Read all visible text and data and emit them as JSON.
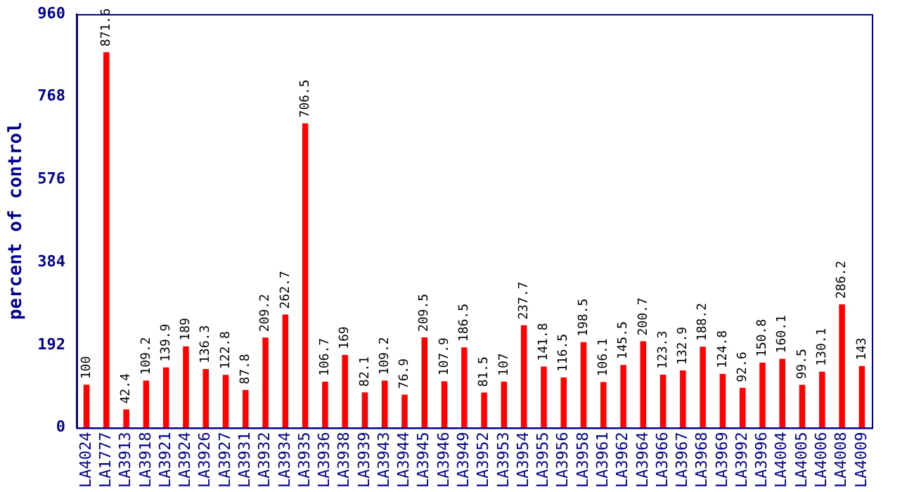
{
  "chart_data": {
    "type": "bar",
    "ylabel": "percent of control",
    "categories": [
      "LA4024",
      "LA1777",
      "LA3913",
      "LA3918",
      "LA3921",
      "LA3924",
      "LA3926",
      "LA3927",
      "LA3931",
      "LA3932",
      "LA3934",
      "LA3935",
      "LA3936",
      "LA3938",
      "LA3939",
      "LA3943",
      "LA3944",
      "LA3945",
      "LA3946",
      "LA3949",
      "LA3952",
      "LA3953",
      "LA3954",
      "LA3955",
      "LA3956",
      "LA3958",
      "LA3961",
      "LA3962",
      "LA3964",
      "LA3966",
      "LA3967",
      "LA3968",
      "LA3969",
      "LA3992",
      "LA3996",
      "LA4004",
      "LA4005",
      "LA4006",
      "LA4008",
      "LA4009"
    ],
    "values": [
      100,
      871.6,
      42.4,
      109.2,
      139.9,
      189,
      136.3,
      122.8,
      87.8,
      209.2,
      262.7,
      706.5,
      106.7,
      169,
      82.1,
      109.2,
      76.9,
      209.5,
      107.9,
      186.5,
      81.5,
      107,
      237.7,
      141.8,
      116.5,
      198.5,
      106.1,
      145.5,
      200.7,
      123.3,
      132.9,
      188.2,
      124.8,
      92.6,
      150.8,
      160.1,
      99.5,
      130.1,
      286.2,
      143
    ],
    "color": "#ff0000",
    "ylim": [
      0,
      960
    ],
    "yticks": [
      0,
      192,
      384,
      576,
      768,
      960
    ],
    "grid": false,
    "legend": false,
    "data_labels": true
  }
}
